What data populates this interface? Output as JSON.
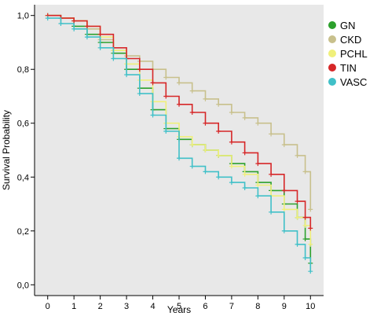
{
  "chart_data": {
    "type": "line",
    "subtype": "kaplan-meier step curves with censor marks",
    "xlabel": "Years",
    "ylabel": "Survival Probability",
    "xlim": [
      -0.5,
      10.5
    ],
    "ylim": [
      -0.04,
      1.04
    ],
    "x_ticks": [
      0,
      1,
      2,
      3,
      4,
      5,
      6,
      7,
      8,
      9,
      10
    ],
    "x_tick_labels": [
      "0",
      "1",
      "2",
      "3",
      "4",
      "5",
      "6",
      "7",
      "8",
      "9",
      "10"
    ],
    "y_ticks": [
      0.0,
      0.2,
      0.4,
      0.6,
      0.8,
      1.0
    ],
    "y_tick_labels": [
      "0,0",
      "0,2",
      "0,4",
      "0,6",
      "0,8",
      "1,0"
    ],
    "grid": false,
    "plot_background": "#e8e8e8",
    "legend_position": "top-right, outside plot",
    "series": [
      {
        "name": "GN",
        "color": "#2ca02c",
        "x": [
          0,
          0.5,
          1,
          1.5,
          2,
          2.5,
          3,
          3.5,
          4,
          4.5,
          5,
          5.5,
          6,
          6.5,
          7,
          7.5,
          8,
          8.5,
          9,
          9.5,
          9.8,
          10
        ],
        "y": [
          1.0,
          0.99,
          0.96,
          0.93,
          0.9,
          0.86,
          0.8,
          0.73,
          0.65,
          0.58,
          0.54,
          0.52,
          0.5,
          0.48,
          0.45,
          0.42,
          0.38,
          0.35,
          0.3,
          0.25,
          0.17,
          0.08
        ]
      },
      {
        "name": "CKD",
        "color": "#c8c08c",
        "x": [
          0,
          0.5,
          1,
          1.5,
          2,
          2.5,
          3,
          3.5,
          4,
          4.5,
          5,
          5.5,
          6,
          6.5,
          7,
          7.5,
          8,
          8.5,
          9,
          9.5,
          9.8,
          10
        ],
        "y": [
          1.0,
          0.99,
          0.98,
          0.95,
          0.91,
          0.87,
          0.85,
          0.83,
          0.8,
          0.77,
          0.75,
          0.72,
          0.69,
          0.67,
          0.64,
          0.62,
          0.6,
          0.56,
          0.52,
          0.48,
          0.42,
          0.28
        ]
      },
      {
        "name": "PCHL",
        "color": "#f0f07a",
        "x": [
          0,
          0.5,
          1,
          1.5,
          2,
          2.5,
          3,
          3.5,
          4,
          4.5,
          5,
          5.5,
          6,
          6.5,
          7,
          7.5,
          8,
          8.5,
          9,
          9.5,
          9.8,
          10
        ],
        "y": [
          1.0,
          0.99,
          0.98,
          0.96,
          0.92,
          0.87,
          0.82,
          0.76,
          0.68,
          0.6,
          0.55,
          0.52,
          0.5,
          0.48,
          0.44,
          0.41,
          0.37,
          0.33,
          0.28,
          0.25,
          0.22,
          0.15
        ]
      },
      {
        "name": "TIN",
        "color": "#d62728",
        "x": [
          0,
          0.5,
          1,
          1.5,
          2,
          2.5,
          3,
          3.5,
          4,
          4.5,
          5,
          5.5,
          6,
          6.5,
          7,
          7.5,
          8,
          8.5,
          9,
          9.5,
          9.8,
          10
        ],
        "y": [
          1.0,
          0.99,
          0.98,
          0.96,
          0.93,
          0.88,
          0.84,
          0.8,
          0.75,
          0.7,
          0.67,
          0.64,
          0.6,
          0.57,
          0.53,
          0.49,
          0.45,
          0.41,
          0.35,
          0.31,
          0.25,
          0.21
        ]
      },
      {
        "name": "VASC",
        "color": "#40c0c8",
        "x": [
          0,
          0.5,
          1,
          1.5,
          2,
          2.5,
          3,
          3.5,
          4,
          4.5,
          5,
          5.5,
          6,
          6.5,
          7,
          7.5,
          8,
          8.5,
          9,
          9.5,
          9.8,
          10
        ],
        "y": [
          0.99,
          0.97,
          0.95,
          0.92,
          0.88,
          0.84,
          0.78,
          0.71,
          0.63,
          0.57,
          0.47,
          0.44,
          0.42,
          0.4,
          0.38,
          0.36,
          0.33,
          0.27,
          0.2,
          0.15,
          0.1,
          0.05
        ]
      }
    ]
  }
}
